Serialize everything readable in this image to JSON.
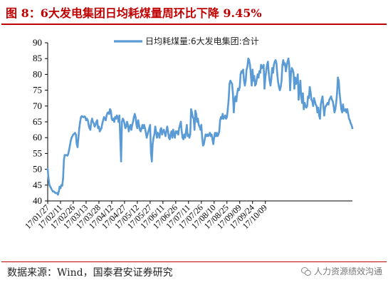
{
  "title": "图 8：6大发电集团日均耗煤量周环比下降 9.45%",
  "source": "数据来源：Wind，国泰君安证券研究",
  "watermark": "人力资源绩效沟通",
  "colors": {
    "accent": "#c00000",
    "line": "#5b9bd5"
  },
  "chart_data": {
    "type": "line",
    "title": "",
    "xlabel": "",
    "ylabel": "",
    "ylim": [
      40,
      90
    ],
    "yticks": [
      40,
      45,
      50,
      55,
      60,
      65,
      70,
      75,
      80,
      85,
      90
    ],
    "grid": false,
    "legend_position": "top",
    "xticks": [
      "17/01/27",
      "17/02/11",
      "17/02/26",
      "17/03/13",
      "17/03/28",
      "17/04/12",
      "17/04/27",
      "17/05/12",
      "17/05/27",
      "17/06/11",
      "17/06/26",
      "17/07/11",
      "17/07/26",
      "17/08/10",
      "17/08/25",
      "17/09/09",
      "17/09/24",
      "17/10/09"
    ],
    "series": [
      {
        "name": "日均耗煤量:6大发电集团:合计",
        "x_start": "2017-01-27",
        "x_step_days": 1,
        "values": [
          50,
          47,
          45,
          44.5,
          44,
          43.5,
          43,
          43,
          42.8,
          42.5,
          42.5,
          42.5,
          42,
          43,
          44.5,
          44,
          45,
          44.8,
          47,
          53,
          54.5,
          54.5,
          54.5,
          54.3,
          54.8,
          56,
          57.5,
          59,
          60,
          60.5,
          61,
          61.2,
          61.5,
          61,
          58,
          57,
          60,
          63,
          65,
          66.5,
          66.8,
          66.6,
          66.5,
          66.7,
          66.5,
          65.5,
          66,
          65.5,
          64,
          63,
          62.5,
          65,
          66,
          65,
          64.5,
          63.5,
          64,
          65,
          65.5,
          63,
          63.5,
          62,
          62.5,
          63,
          64.5,
          65.5,
          66.5,
          66,
          65.5,
          67,
          67.8,
          68,
          67.5,
          69,
          68.5,
          66,
          65.5,
          66,
          65,
          66.5,
          66,
          67,
          66.5,
          65,
          67,
          60,
          52.5,
          65,
          66,
          65.5,
          64.5,
          63,
          63.5,
          65,
          64,
          62,
          63.5,
          64,
          62.5,
          64,
          65,
          66.5,
          67.5,
          66.5,
          64,
          63,
          65.5,
          64,
          62.5,
          62,
          63,
          64,
          63,
          64,
          63,
          61.5,
          60,
          61,
          62,
          63,
          64,
          55,
          52.5,
          58,
          60,
          61,
          63.5,
          62,
          60,
          61.5,
          61,
          60,
          62.5,
          63,
          61,
          62,
          62.5,
          61.5,
          60.5,
          62,
          63.5,
          62,
          60,
          59.5,
          61,
          62,
          60,
          62.5,
          61,
          60,
          62,
          61.5,
          62,
          61,
          63,
          64,
          65,
          62,
          60,
          59.5,
          61,
          60,
          62,
          64,
          60.5,
          61,
          60,
          61,
          69,
          68,
          66.5,
          66,
          62.5,
          68.5,
          67.5,
          65,
          66,
          64,
          63.5,
          62.5,
          64,
          60,
          57.5,
          58,
          59.5,
          61,
          60.5,
          61,
          60.5,
          61,
          61.5,
          60.5,
          61,
          59.5,
          58,
          60,
          61.5,
          60.5,
          61.5,
          60.5,
          61,
          62,
          65.5,
          66.5,
          66,
          67.5,
          66,
          66.5,
          67,
          66,
          66.5,
          69,
          72,
          77,
          78,
          77.5,
          77,
          74,
          68,
          72,
          73,
          71.5,
          74,
          75.5,
          75,
          76,
          80,
          81,
          80.5,
          81.5,
          78,
          76.5,
          78,
          81.5,
          82.5,
          85,
          84.5,
          83,
          80,
          76.5,
          81.5,
          78,
          79.5,
          76.5,
          77,
          78.5,
          80,
          79,
          81,
          80.5,
          83,
          82,
          82.5,
          83,
          75.5,
          79,
          81,
          83,
          84,
          80.5,
          78,
          76.5,
          78.5,
          82,
          80.5,
          83,
          84,
          84.5,
          83.5,
          80,
          77.5,
          76,
          75,
          76,
          78,
          83,
          84.5,
          83,
          83.5,
          81,
          82.5,
          84,
          85,
          83,
          75,
          80,
          82,
          81.5,
          80.5,
          75.5,
          79,
          77,
          78,
          80,
          72,
          75,
          78,
          73,
          71,
          74,
          69,
          71,
          70,
          69.5,
          70,
          73,
          72.5,
          76,
          74.5,
          72,
          71.5,
          70,
          72.5,
          71.5,
          70.5,
          70,
          68,
          69.5,
          67,
          66,
          70.5,
          72,
          73,
          70,
          67,
          69.5,
          70,
          70.5,
          71,
          70.5,
          72,
          72.5,
          73,
          72,
          71.5,
          70,
          68,
          69,
          71,
          74,
          79,
          78,
          74,
          71.5,
          69,
          68,
          70.5,
          68.5,
          68.5,
          69,
          68,
          69,
          67.5,
          66,
          65.5,
          64.5,
          64,
          63
        ]
      }
    ]
  }
}
